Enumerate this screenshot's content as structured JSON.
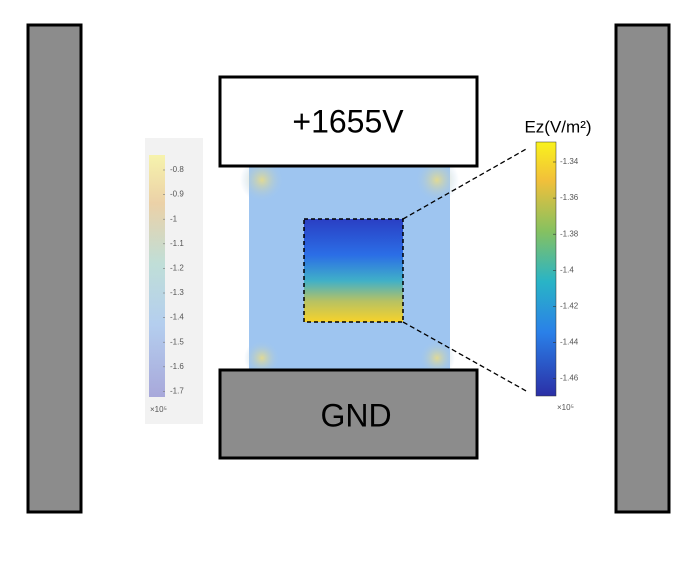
{
  "top_electrode": {
    "label": "+1655V"
  },
  "bottom_electrode": {
    "label": "GND"
  },
  "left_colorbar": {
    "ticks": [
      "-0.8",
      "-0.9",
      "-1",
      "-1.1",
      "-1.2",
      "-1.3",
      "-1.4",
      "-1.5",
      "-1.6",
      "-1.7"
    ],
    "exponent": "×10⁵"
  },
  "right_colorbar": {
    "title": "Ez(V/m²)",
    "ticks": [
      "-1.34",
      "-1.36",
      "-1.38",
      "-1.4",
      "-1.42",
      "-1.44",
      "-1.46"
    ],
    "exponent": "×10⁵"
  }
}
